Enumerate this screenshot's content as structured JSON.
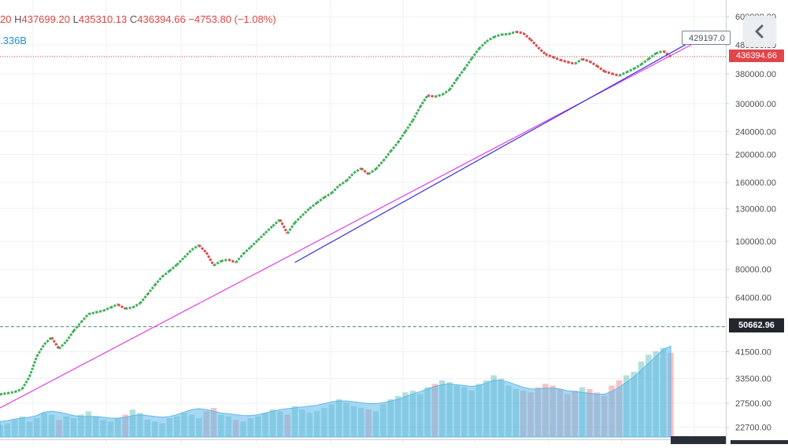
{
  "header": {
    "open_fragment": "20",
    "high_label": "H",
    "high_value": "437699.20",
    "low_label": "L",
    "low_value": "435310.13",
    "close_label": "C",
    "close_value": "436394.66",
    "change": "−4753.80 (−1.08%)",
    "volume_fragment": ".336B"
  },
  "tooltip_value": "429197.0",
  "last_price_tag": "436394.66",
  "level_line_tag": "50662.96",
  "colors": {
    "up": "#26a69a",
    "down": "#ef5350",
    "trendline_pink": "#e040e0",
    "trendline_blue": "#3a2fd8",
    "volume_ma": "#5fb8ea",
    "price_tag_bg": "#e0454a",
    "level_tag_bg": "#22262e"
  },
  "chart_data": {
    "type": "line",
    "scale": "log",
    "series": [
      {
        "values": [
          29500,
          29800,
          30100,
          30800,
          34000,
          40000,
          44000,
          46500,
          42500,
          45000,
          49000,
          52500,
          56000,
          56800,
          57500,
          59000,
          60500,
          58500,
          59000,
          61000,
          65500,
          70500,
          75500,
          79000,
          83000,
          88000,
          93500,
          97000,
          91500,
          82500,
          85500,
          86500,
          84500,
          90500,
          95500,
          101000,
          107000,
          113000,
          119000,
          106500,
          116000,
          123000,
          130000,
          136000,
          142000,
          147000,
          156000,
          162000,
          172500,
          179000,
          171000,
          178000,
          190000,
          205000,
          220000,
          240000,
          262000,
          292000,
          320000,
          317000,
          322000,
          335000,
          365000,
          395000,
          430000,
          465000,
          492000,
          510000,
          520000,
          522000,
          532000,
          526000,
          500000,
          470000,
          445000,
          435000,
          425000,
          418000,
          412000,
          428000,
          420000,
          405000,
          388000,
          381000,
          375000,
          385000,
          396000,
          410000,
          428000,
          448000,
          456000,
          436394.66
        ]
      }
    ],
    "y_axis_ticks": [
      22700,
      27500,
      33500,
      41500,
      50662.96,
      64000,
      80000,
      100000,
      130000,
      160000,
      200000,
      240000,
      300000,
      380000,
      436394.66,
      480000,
      600000
    ],
    "y_tick_labels": [
      "22700.00",
      "27500.00",
      "33500.00",
      "41500.00",
      "50662.96",
      "64000.00",
      "80000.00",
      "100000.00",
      "130000.00",
      "160000.00",
      "200000.00",
      "240000.00",
      "300000.00",
      "380000.00",
      "436394.66",
      "480000.00",
      "600000.00"
    ],
    "ylim": [
      20500,
      660000
    ],
    "last_price": 436394.66,
    "horizontal_level": 50662.96,
    "trendlines": [
      {
        "from_index": 0,
        "from_value": 26500,
        "to_index": 91,
        "to_value": 440000
      },
      {
        "from_index": 40,
        "from_value": 84500,
        "to_index": 93,
        "to_value": 480000
      }
    ],
    "volume": {
      "values": [
        7,
        8,
        10,
        12,
        9,
        11,
        14,
        13,
        10,
        12,
        11,
        13,
        15,
        12,
        10,
        9,
        11,
        13,
        16,
        14,
        10,
        9,
        8,
        11,
        12,
        14,
        13,
        11,
        15,
        17,
        13,
        12,
        10,
        9,
        11,
        12,
        14,
        16,
        15,
        13,
        18,
        16,
        14,
        15,
        17,
        19,
        22,
        20,
        18,
        17,
        16,
        15,
        19,
        22,
        24,
        26,
        27,
        25,
        29,
        31,
        33,
        32,
        30,
        29,
        27,
        31,
        33,
        36,
        34,
        30,
        28,
        27,
        26,
        29,
        31,
        30,
        28,
        25,
        27,
        29,
        28,
        26,
        24,
        30,
        33,
        36,
        38,
        44,
        48,
        50,
        52,
        49
      ],
      "moving_average": [
        9,
        9.5,
        10.5,
        11,
        11.5,
        12.5,
        14.5,
        15,
        14.5,
        13.5,
        12.5,
        12,
        12,
        12,
        11.5,
        11,
        11,
        11.5,
        12.5,
        13,
        12.5,
        12,
        11.5,
        12,
        13,
        14.5,
        16,
        16.5,
        16,
        15,
        14,
        13.5,
        13,
        12.5,
        12.5,
        13,
        14,
        15,
        16,
        16.5,
        17,
        17.5,
        18,
        18.5,
        19.5,
        20.5,
        21,
        21,
        20.5,
        20,
        19.5,
        19.5,
        20,
        21,
        22,
        23.5,
        25,
        26.5,
        28,
        29.5,
        30.5,
        31,
        30.5,
        30,
        29.5,
        30,
        31.5,
        33,
        33,
        32,
        30.5,
        29,
        28,
        28,
        28.5,
        28.5,
        28,
        27,
        26.5,
        26,
        25.5,
        25,
        25,
        26.5,
        29,
        32,
        35,
        39,
        43,
        47,
        51,
        53
      ]
    }
  }
}
